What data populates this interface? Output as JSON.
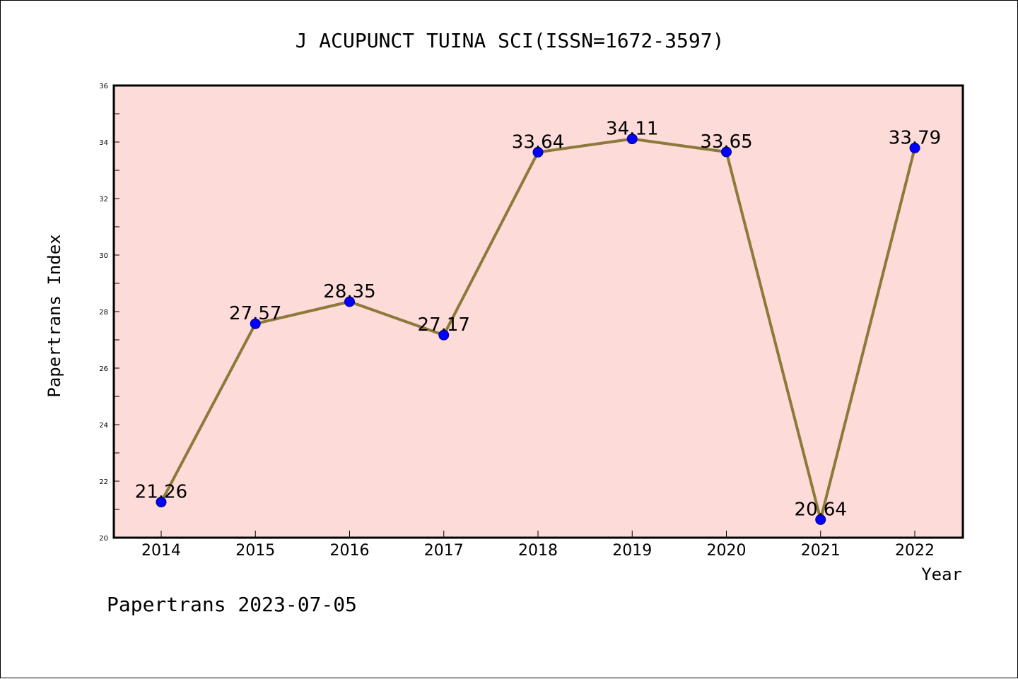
{
  "chart_data": {
    "type": "line",
    "title": "J ACUPUNCT TUINA SCI(ISSN=1672-3597)",
    "xlabel": "Year",
    "ylabel": "Papertrans Index",
    "categories": [
      "2014",
      "2015",
      "2016",
      "2017",
      "2018",
      "2019",
      "2020",
      "2021",
      "2022"
    ],
    "values": [
      21.26,
      27.57,
      28.35,
      27.17,
      33.64,
      34.11,
      33.65,
      20.64,
      33.79
    ],
    "data_labels": [
      "21.26",
      "27.57",
      "28.35",
      "27.17",
      "33.64",
      "34.11",
      "33.65",
      "20.64",
      "33.79"
    ],
    "ylim": [
      20,
      36
    ],
    "yticks": [
      "20",
      "22",
      "24",
      "26",
      "28",
      "30",
      "32",
      "34",
      "36"
    ],
    "grid": false,
    "legend": "none",
    "footer": "Papertrans 2023-07-05",
    "colors": {
      "plot_background": "#fddbd8",
      "line": "#8c7a3a",
      "marker": "#0000ff",
      "marker_edge": "#000080",
      "axis": "#000000"
    }
  }
}
